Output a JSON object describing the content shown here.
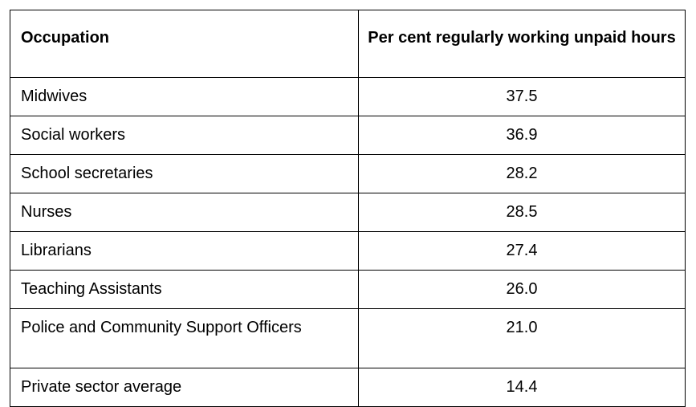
{
  "chart_data": {
    "type": "table",
    "columns": [
      "Occupation",
      "Per cent regularly working unpaid hours"
    ],
    "rows": [
      {
        "occupation": "Midwives",
        "value": "37.5"
      },
      {
        "occupation": "Social workers",
        "value": "36.9"
      },
      {
        "occupation": "School secretaries",
        "value": "28.2"
      },
      {
        "occupation": "Nurses",
        "value": "28.5"
      },
      {
        "occupation": "Librarians",
        "value": "27.4"
      },
      {
        "occupation": "Teaching Assistants",
        "value": "26.0"
      },
      {
        "occupation": "Police and Community Support Officers",
        "value": "21.0"
      },
      {
        "occupation": "Private sector average",
        "value": "14.4"
      }
    ]
  }
}
